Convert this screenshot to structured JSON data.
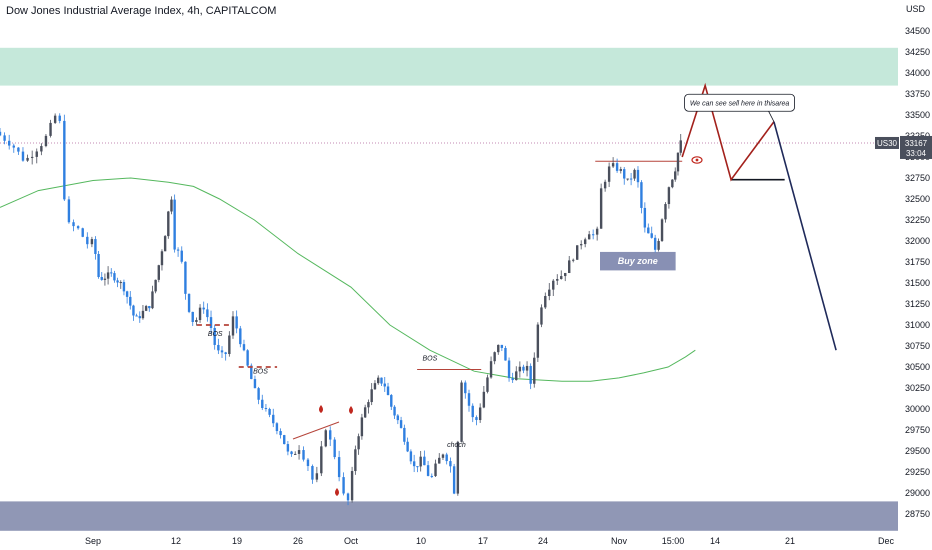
{
  "header": {
    "title": "Dow Jones Industrial Average Index, 4h, CAPITALCOM"
  },
  "chart_data": {
    "type": "candlestick",
    "symbol": "US30",
    "currency_label": "USD",
    "price_badge": {
      "price": 33167,
      "countdown": "33:04",
      "symbol": "US30"
    },
    "ylim": [
      28600,
      34900
    ],
    "y_ticks": [
      28750,
      29000,
      29250,
      29500,
      29750,
      30000,
      30250,
      30500,
      30750,
      31000,
      31250,
      31500,
      31750,
      32000,
      32250,
      32500,
      32750,
      33000,
      33250,
      33500,
      33750,
      34000,
      34250,
      34500
    ],
    "x_ticks": [
      {
        "label": "Sep",
        "day": 0
      },
      {
        "label": "12",
        "day": 11
      },
      {
        "label": "19",
        "day": 18
      },
      {
        "label": "26",
        "day": 25
      },
      {
        "label": "Oct",
        "day": 30
      },
      {
        "label": "10",
        "day": 39
      },
      {
        "label": "17",
        "day": 46
      },
      {
        "label": "24",
        "day": 53
      },
      {
        "label": "Nov",
        "day": 61
      },
      {
        "label": "15:00",
        "day": 67.6
      },
      {
        "label": "14",
        "day": 74
      },
      {
        "label": "21",
        "day": 81
      },
      {
        "label": "Dec",
        "day": 91
      }
    ],
    "price_path": [
      [
        -8.5,
        33300
      ],
      [
        -7,
        33150
      ],
      [
        -5.8,
        32950
      ],
      [
        -4,
        33200
      ],
      [
        -3,
        33500
      ],
      [
        -2.4,
        33350
      ],
      [
        -2.3,
        32700
      ],
      [
        -2,
        32200
      ],
      [
        -1,
        32150
      ],
      [
        0,
        31950
      ],
      [
        0.5,
        32000
      ],
      [
        1.2,
        31550
      ],
      [
        3,
        31600
      ],
      [
        4.5,
        31450
      ],
      [
        5.5,
        31200
      ],
      [
        6,
        31050
      ],
      [
        8,
        31250
      ],
      [
        9,
        31650
      ],
      [
        10,
        32100
      ],
      [
        10.5,
        32400
      ],
      [
        11,
        32600
      ],
      [
        11.2,
        31950
      ],
      [
        12,
        31800
      ],
      [
        12.6,
        31300
      ],
      [
        13.5,
        31000
      ],
      [
        14.5,
        31250
      ],
      [
        15.5,
        30950
      ],
      [
        16,
        30700
      ],
      [
        17,
        30600
      ],
      [
        18,
        31100
      ],
      [
        18.7,
        30850
      ],
      [
        19.5,
        30550
      ],
      [
        20.5,
        30200
      ],
      [
        21.5,
        30000
      ],
      [
        22.5,
        29850
      ],
      [
        23.5,
        29700
      ],
      [
        24.5,
        29400
      ],
      [
        25.5,
        29550
      ],
      [
        26.5,
        29300
      ],
      [
        27,
        29050
      ],
      [
        28,
        29800
      ],
      [
        29,
        29400
      ],
      [
        29.5,
        29100
      ],
      [
        30,
        28800
      ],
      [
        31,
        29550
      ],
      [
        32,
        29950
      ],
      [
        33,
        30200
      ],
      [
        34,
        30350
      ],
      [
        34.7,
        30300
      ],
      [
        35.7,
        30000
      ],
      [
        36.5,
        29850
      ],
      [
        37.5,
        29600
      ],
      [
        38.5,
        29300
      ],
      [
        39.5,
        29400
      ],
      [
        40.5,
        29150
      ],
      [
        41.2,
        29350
      ],
      [
        42,
        29500
      ],
      [
        42.8,
        29300
      ],
      [
        43.2,
        29000
      ],
      [
        44,
        30350
      ],
      [
        45.5,
        29800
      ],
      [
        46.5,
        30200
      ],
      [
        47.5,
        30600
      ],
      [
        48.5,
        30800
      ],
      [
        49.5,
        30350
      ],
      [
        50.5,
        30450
      ],
      [
        51.5,
        30500
      ],
      [
        52,
        30300
      ],
      [
        53,
        31150
      ],
      [
        53.5,
        31350
      ],
      [
        54.5,
        31550
      ],
      [
        55.5,
        31600
      ],
      [
        56.5,
        31800
      ],
      [
        57.5,
        32000
      ],
      [
        58.5,
        32150
      ],
      [
        59,
        31950
      ],
      [
        59.5,
        32600
      ],
      [
        60.5,
        32900
      ],
      [
        61.5,
        32850
      ],
      [
        62.5,
        32700
      ],
      [
        63.5,
        32850
      ],
      [
        64.5,
        32150
      ],
      [
        65.5,
        32000
      ],
      [
        66,
        31850
      ],
      [
        66.5,
        32200
      ],
      [
        67.5,
        32650
      ],
      [
        68.5,
        32900
      ],
      [
        69,
        33167
      ]
    ],
    "moving_average": [
      [
        -8.5,
        32400
      ],
      [
        -5,
        32600
      ],
      [
        0,
        32720
      ],
      [
        5,
        32750
      ],
      [
        10,
        32700
      ],
      [
        13,
        32650
      ],
      [
        16,
        32500
      ],
      [
        20,
        32250
      ],
      [
        25,
        31850
      ],
      [
        30,
        31450
      ],
      [
        35,
        31000
      ],
      [
        40,
        30700
      ],
      [
        45,
        30450
      ],
      [
        50,
        30360
      ],
      [
        55,
        30330
      ],
      [
        58,
        30330
      ],
      [
        61,
        30370
      ],
      [
        64,
        30430
      ],
      [
        67,
        30500
      ],
      [
        69.5,
        30620
      ],
      [
        71,
        30700
      ]
    ],
    "supply_zone": [
      33850,
      34300
    ],
    "demand_zone": [
      28550,
      28900
    ],
    "last_price_line": 33167,
    "projection_red": [
      [
        69,
        33000
      ],
      [
        72.5,
        33850
      ],
      [
        75.5,
        32730
      ],
      [
        79.5,
        33420
      ]
    ],
    "projection_navy": [
      [
        79.5,
        33420
      ],
      [
        85.8,
        30700
      ]
    ],
    "support_line": {
      "from": [
        75.5,
        32730
      ],
      "to": [
        80.5,
        32730
      ]
    },
    "resistance_line": {
      "from": [
        58.5,
        32950
      ],
      "to": [
        69,
        32950
      ]
    },
    "buy_zone": {
      "label": "Buy zone",
      "from_day": 59,
      "to_day": 68,
      "low": 31650,
      "high": 31870
    },
    "annotations": [
      {
        "text": "BOS",
        "day": 20.7,
        "price": 30420,
        "line_from": 18.2,
        "line_to": 22.6,
        "line_price": 30500,
        "style": "dashed"
      },
      {
        "text": "BOS",
        "day": 15.5,
        "price": 30870,
        "line_from": 13.4,
        "line_to": 17.3,
        "line_price": 31000,
        "style": "dashed"
      },
      {
        "text": "BOS",
        "day": 40.0,
        "price": 30580,
        "line_from": 38.5,
        "line_to": 45.8,
        "line_price": 30470,
        "style": "solid"
      },
      {
        "text": "choch",
        "day": 43.0,
        "price": 29550,
        "line_from": 0,
        "line_to": 0,
        "line_price": 0,
        "style": "none"
      }
    ],
    "callout": {
      "text": "We can see sell here in thisarea",
      "day": 76.2,
      "price": 33640
    }
  }
}
